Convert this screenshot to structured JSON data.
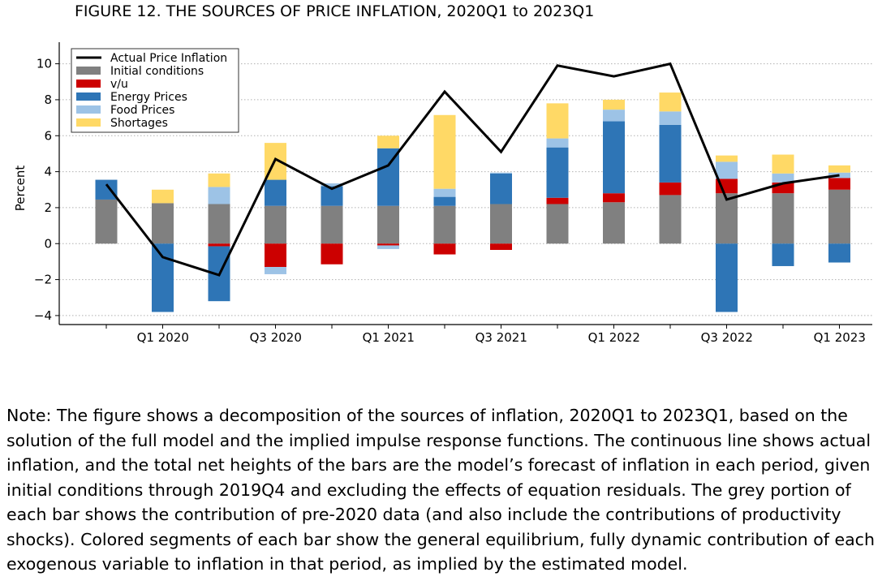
{
  "title": "FIGURE 12.  THE SOURCES OF PRICE INFLATION, 2020Q1 to 2023Q1",
  "note": "Note: The figure shows a decomposition of the sources of inflation, 2020Q1 to 2023Q1, based on the solution of the full model and the implied impulse response functions. The continuous line shows actual inflation, and the total net heights of the bars are the model’s forecast of inflation in each period, given initial conditions through 2019Q4 and excluding the effects of equation residuals. The grey portion of each bar shows the contribution of pre-2020 data (and also include the contributions of productivity shocks). Colored segments of each bar show the general equilibrium, fully dynamic contribution of each exogenous variable to inflation in that period, as implied by the estimated model.",
  "chart_data": {
    "type": "bar",
    "stacked": true,
    "ylabel": "Percent",
    "xlabel": "",
    "ylim": [
      -4.5,
      11.2
    ],
    "yticks": [
      -4,
      -2,
      0,
      2,
      4,
      6,
      8,
      10
    ],
    "ytick_labels": [
      "−4",
      "−2",
      "0",
      "2",
      "4",
      "6",
      "8",
      "10"
    ],
    "grid": "horizontal dotted",
    "legend_position": "top-left",
    "x_tick_labels": [
      {
        "label": "Q1 2020",
        "index": 0
      },
      {
        "label": "Q3 2020",
        "index": 2
      },
      {
        "label": "Q1 2021",
        "index": 4
      },
      {
        "label": "Q3 2021",
        "index": 6
      },
      {
        "label": "Q1 2022",
        "index": 8
      },
      {
        "label": "Q3 2022",
        "index": 10
      },
      {
        "label": "Q1 2023",
        "index": 12
      }
    ],
    "series": [
      {
        "name": "Initial conditions",
        "color": "#808080",
        "values": [
          2.45,
          2.25,
          2.2,
          2.1,
          2.1,
          2.1,
          2.1,
          2.2,
          2.2,
          2.3,
          2.7,
          2.8,
          2.8,
          3.0
        ]
      },
      {
        "name": "v/u",
        "color": "#cc0000",
        "values": [
          0,
          0,
          -0.15,
          -1.3,
          -1.15,
          -0.1,
          -0.6,
          -0.35,
          0.35,
          0.5,
          0.7,
          0.8,
          0.6,
          0.65
        ]
      },
      {
        "name": "Energy Prices",
        "color": "#2e75b6",
        "values": [
          1.1,
          -3.8,
          -3.05,
          1.45,
          1.1,
          3.2,
          0.5,
          1.7,
          2.8,
          4.0,
          3.2,
          -3.8,
          -1.25,
          -1.05
        ]
      },
      {
        "name": "Food Prices",
        "color": "#9dc3e6",
        "values": [
          0,
          0,
          0.95,
          -0.4,
          0.15,
          -0.2,
          0.45,
          0.05,
          0.5,
          0.65,
          0.75,
          0.95,
          0.5,
          0.3
        ]
      },
      {
        "name": "Shortages",
        "color": "#ffd966",
        "values": [
          0,
          0.75,
          0.75,
          2.05,
          0,
          0.7,
          4.1,
          0,
          1.95,
          0.55,
          1.05,
          0.35,
          1.05,
          0.4
        ]
      }
    ],
    "line": {
      "name": "Actual Price Inflation",
      "color": "#000000",
      "values": [
        3.3,
        -0.75,
        -1.75,
        4.7,
        3.05,
        4.35,
        8.45,
        5.1,
        9.9,
        9.3,
        10.0,
        2.45,
        3.35,
        3.8
      ]
    }
  }
}
